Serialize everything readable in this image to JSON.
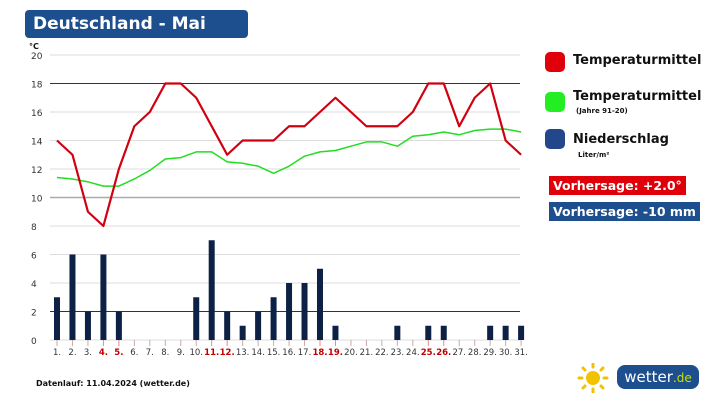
{
  "title": "Deutschland - Mai",
  "legend": {
    "temp": "Temperaturmittel",
    "normal": "Temperaturmittel",
    "normal_sub": "(Jahre 91-20)",
    "precip": "Niederschlag",
    "precip_sub": "Liter/m²",
    "forecast_temp": "Vorhersage: +2.0°",
    "forecast_precip": "Vorhersage: -10 mm"
  },
  "footer": "Datenlauf: 11.04.2024 (wetter.de)",
  "logo": {
    "main": "wetter",
    "tld": ".de"
  },
  "colors": {
    "temp": "#e0000a",
    "normal": "#22dd22",
    "precip": "#0d2145",
    "title": "#1d4f8e",
    "weekend": "#c00000"
  },
  "chart_data": {
    "type": "bar+line",
    "unit_label": "°C",
    "ylim": [
      0,
      20
    ],
    "yticks": [
      0,
      2,
      4,
      6,
      8,
      10,
      12,
      14,
      16,
      18,
      20
    ],
    "categories": [
      "1.",
      "2.",
      "3.",
      "4.",
      "5.",
      "6.",
      "7.",
      "8.",
      "9.",
      "10.",
      "11.",
      "12.",
      "13.",
      "14.",
      "15.",
      "16.",
      "17.",
      "18.",
      "19.",
      "20.",
      "21.",
      "22.",
      "23.",
      "24.",
      "25.",
      "26.",
      "27.",
      "28.",
      "29.",
      "30.",
      "31."
    ],
    "weekend_days": [
      4,
      5,
      11,
      12,
      18,
      19,
      25,
      26
    ],
    "series": [
      {
        "name": "Temperaturmittel",
        "type": "line",
        "values": [
          14,
          13,
          9,
          8,
          12,
          15,
          16,
          18,
          18,
          17,
          15,
          13,
          14,
          14,
          14,
          15,
          15,
          16,
          17,
          16,
          15,
          15,
          15,
          16,
          18,
          18,
          15,
          17,
          18,
          14,
          13
        ]
      },
      {
        "name": "Temperaturmittel (Jahre 91-20)",
        "type": "line",
        "values": [
          11.4,
          11.3,
          11.1,
          10.8,
          10.8,
          11.3,
          11.9,
          12.7,
          12.8,
          13.2,
          13.2,
          12.5,
          12.4,
          12.2,
          11.7,
          12.2,
          12.9,
          13.2,
          13.3,
          13.6,
          13.9,
          13.9,
          13.6,
          14.3,
          14.4,
          14.6,
          14.4,
          14.7,
          14.8,
          14.8,
          14.6
        ]
      },
      {
        "name": "Niederschlag",
        "type": "bar",
        "values": [
          3,
          6,
          2,
          6,
          2,
          0,
          0,
          0,
          0,
          3,
          7,
          2,
          1,
          2,
          3,
          4,
          4,
          5,
          1,
          0,
          0,
          0,
          1,
          0,
          1,
          1,
          0,
          0,
          1,
          1,
          1
        ]
      }
    ]
  }
}
